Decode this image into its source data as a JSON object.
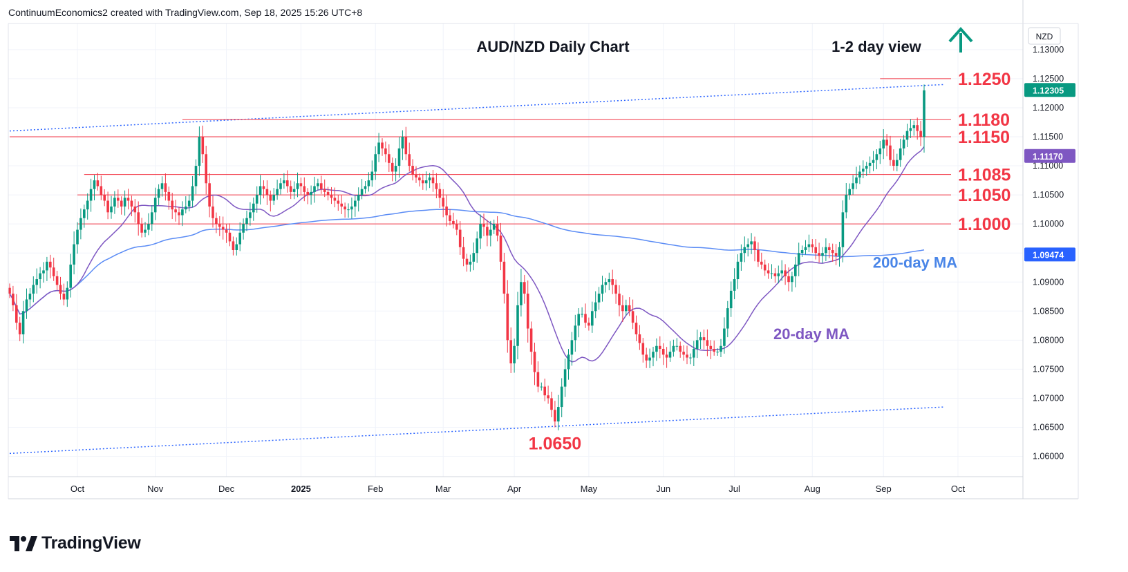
{
  "header": {
    "user": "ContinuumEconomics2",
    "created_with": " created with TradingView.com, ",
    "timestamp": "Sep 18, 2025 15:26 UTC+8"
  },
  "branding": {
    "name": "TradingView"
  },
  "chart_data": {
    "type": "candlestick",
    "title": "AUD/NZD Daily Chart",
    "view_label": "1-2 day view",
    "view_direction": "up",
    "currency_label": "NZD",
    "ylim": [
      1.0565,
      1.1345
    ],
    "y_ticks": [
      "1.13000",
      "1.12500",
      "1.12000",
      "1.11500",
      "1.11000",
      "1.10500",
      "1.10000",
      "1.09500",
      "1.09000",
      "1.08500",
      "1.08000",
      "1.07500",
      "1.07000",
      "1.06500",
      "1.06000"
    ],
    "x_ticks": [
      {
        "label": "Oct",
        "bold": false,
        "i": 20
      },
      {
        "label": "Nov",
        "bold": false,
        "i": 43
      },
      {
        "label": "Dec",
        "bold": false,
        "i": 64
      },
      {
        "label": "2025",
        "bold": true,
        "i": 86
      },
      {
        "label": "Feb",
        "bold": false,
        "i": 108
      },
      {
        "label": "Mar",
        "bold": false,
        "i": 128
      },
      {
        "label": "Apr",
        "bold": false,
        "i": 149
      },
      {
        "label": "May",
        "bold": false,
        "i": 171
      },
      {
        "label": "Jun",
        "bold": false,
        "i": 193
      },
      {
        "label": "Jul",
        "bold": false,
        "i": 214
      },
      {
        "label": "Aug",
        "bold": false,
        "i": 237
      },
      {
        "label": "Sep",
        "bold": false,
        "i": 258
      },
      {
        "label": "Oct",
        "bold": false,
        "i": 280
      }
    ],
    "levels": [
      {
        "label": "1.1250",
        "value": 1.125
      },
      {
        "label": "1.1180",
        "value": 1.118
      },
      {
        "label": "1.1150",
        "value": 1.115
      },
      {
        "label": "1.1085",
        "value": 1.1085
      },
      {
        "label": "1.1050",
        "value": 1.105
      },
      {
        "label": "1.1000",
        "value": 1.1
      }
    ],
    "low_annotation": {
      "label": "1.0650",
      "value": 1.065
    },
    "ma_labels": {
      "ma200": "200-day MA",
      "ma20": "20-day MA"
    },
    "price_tags": [
      {
        "label": "1.12305",
        "value": 1.12305,
        "kind": "last"
      },
      {
        "label": "1.11170",
        "value": 1.1117,
        "kind": "ma20"
      },
      {
        "label": "1.09474",
        "value": 1.09474,
        "kind": "ma200"
      }
    ],
    "colors": {
      "up": "#089981",
      "down": "#f23645",
      "level": "#f23645",
      "level_text": "#f23645",
      "ma20": "#7e57c2",
      "ma200": "#5b8cf5",
      "channel": "#2962ff",
      "arrow": "#089981",
      "text": "#131722"
    },
    "closes": [
      1.088,
      1.086,
      1.083,
      1.081,
      1.085,
      1.087,
      1.088,
      1.0895,
      1.0905,
      1.0915,
      1.092,
      1.0935,
      1.0925,
      1.091,
      1.0895,
      1.088,
      1.087,
      1.089,
      1.093,
      1.0965,
      1.099,
      1.101,
      1.1025,
      1.104,
      1.106,
      1.1075,
      1.1065,
      1.105,
      1.104,
      1.102,
      1.103,
      1.1045,
      1.104,
      1.103,
      1.1045,
      1.104,
      1.103,
      1.102,
      1.1,
      1.0985,
      1.099,
      1.1,
      1.102,
      1.1045,
      1.106,
      1.107,
      1.1055,
      1.104,
      1.1025,
      1.102,
      1.1015,
      1.1025,
      1.103,
      1.104,
      1.1065,
      1.11,
      1.115,
      1.112,
      1.107,
      1.103,
      1.101,
      1.1,
      1.0995,
      1.099,
      1.0985,
      1.097,
      1.0955,
      1.0965,
      1.0985,
      1.1,
      1.101,
      1.102,
      1.1035,
      1.105,
      1.1065,
      1.106,
      1.105,
      1.104,
      1.105,
      1.106,
      1.107,
      1.1075,
      1.1065,
      1.1055,
      1.106,
      1.107,
      1.1065,
      1.1055,
      1.105,
      1.1055,
      1.1065,
      1.107,
      1.106,
      1.1055,
      1.105,
      1.1045,
      1.104,
      1.1035,
      1.103,
      1.1025,
      1.1025,
      1.103,
      1.104,
      1.105,
      1.106,
      1.1065,
      1.1075,
      1.109,
      1.112,
      1.114,
      1.113,
      1.112,
      1.1105,
      1.109,
      1.11,
      1.113,
      1.115,
      1.112,
      1.11,
      1.1085,
      1.108,
      1.1075,
      1.107,
      1.1075,
      1.108,
      1.107,
      1.106,
      1.1045,
      1.103,
      1.1015,
      1.1005,
      1.1,
      1.099,
      1.096,
      1.094,
      1.093,
      1.0935,
      1.095,
      1.0975,
      1.1,
      1.0995,
      1.098,
      1.099,
      1.1,
      1.098,
      1.0935,
      1.088,
      1.08,
      1.076,
      1.079,
      1.086,
      1.09,
      1.088,
      1.082,
      1.078,
      1.0745,
      1.072,
      1.072,
      1.0705,
      1.07,
      1.068,
      1.066,
      1.0685,
      1.072,
      1.075,
      1.0775,
      1.08,
      1.0825,
      1.0845,
      1.0845,
      1.083,
      1.0825,
      1.085,
      1.0865,
      1.088,
      1.0895,
      1.09,
      1.0905,
      1.0895,
      1.088,
      1.086,
      1.085,
      1.086,
      1.085,
      1.083,
      1.081,
      1.0795,
      1.0775,
      1.0765,
      1.077,
      1.078,
      1.079,
      1.0785,
      1.0775,
      1.077,
      1.078,
      1.079,
      1.079,
      1.078,
      1.0775,
      1.077,
      1.077,
      1.0785,
      1.08,
      1.0805,
      1.08,
      1.079,
      1.0785,
      1.078,
      1.078,
      1.079,
      1.082,
      1.0855,
      1.0885,
      1.0905,
      1.0935,
      1.095,
      1.096,
      1.0965,
      1.097,
      1.0955,
      1.0935,
      1.093,
      1.092,
      1.0915,
      1.0915,
      1.091,
      1.0915,
      1.092,
      1.091,
      1.09,
      1.091,
      1.093,
      1.095,
      1.0955,
      1.096,
      1.0965,
      1.096,
      1.095,
      1.0945,
      1.095,
      1.096,
      1.0955,
      1.095,
      1.0945,
      1.096,
      1.102,
      1.105,
      1.106,
      1.107,
      1.108,
      1.109,
      1.1095,
      1.11,
      1.1105,
      1.111,
      1.112,
      1.113,
      1.1145,
      1.1135,
      1.111,
      1.11,
      1.111,
      1.113,
      1.1145,
      1.116,
      1.1165,
      1.117,
      1.116,
      1.115,
      1.123
    ]
  }
}
